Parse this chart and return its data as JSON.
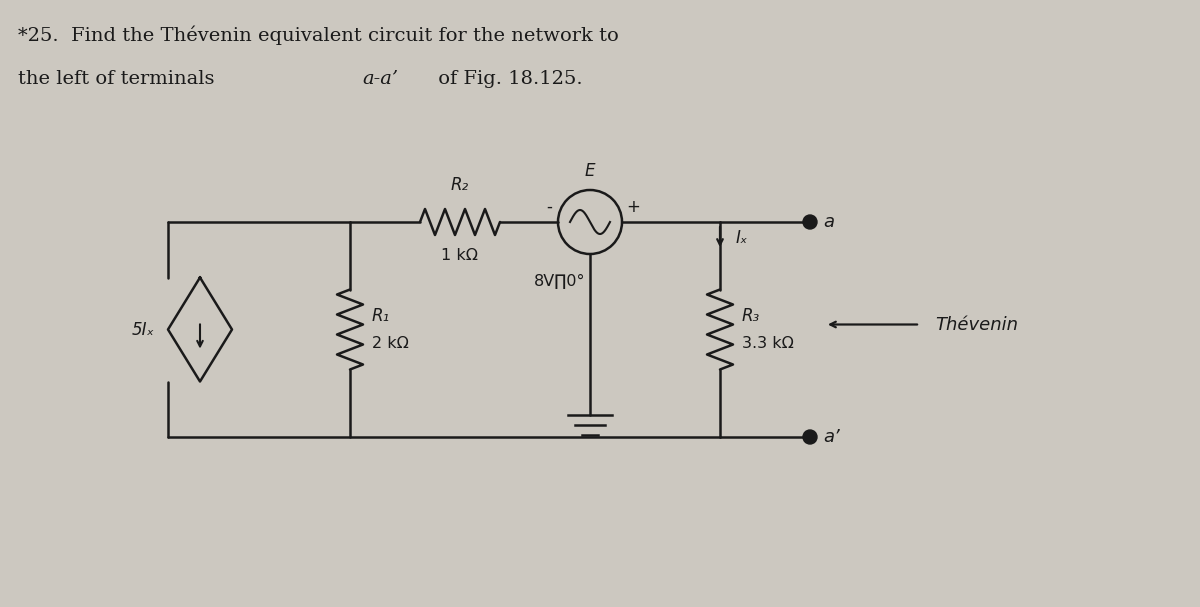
{
  "bg_color": "#ccc8c0",
  "circuit_color": "#1a1a1a",
  "title_line1": "*25.  Find the Thévenin equivalent circuit for the network to",
  "title_line2_a": "the left of terminals ",
  "title_line2_b": "a-a’",
  "title_line2_c": " of Fig. 18.125.",
  "label_R2": "R₂",
  "label_R2_val": "1 kΩ",
  "label_E": "E",
  "label_E_val": "8V∏0°",
  "label_R1": "R₁",
  "label_R1_val": "2 kΩ",
  "label_R3": "R₃",
  "label_R3_val": "3.3 kΩ",
  "label_Ix": "Iₓ",
  "label_5Ix": "5Iₓ",
  "label_thevenin": "Thévenin",
  "label_a": "a",
  "label_aprime": "a’",
  "label_plus": "+",
  "label_minus": "-"
}
